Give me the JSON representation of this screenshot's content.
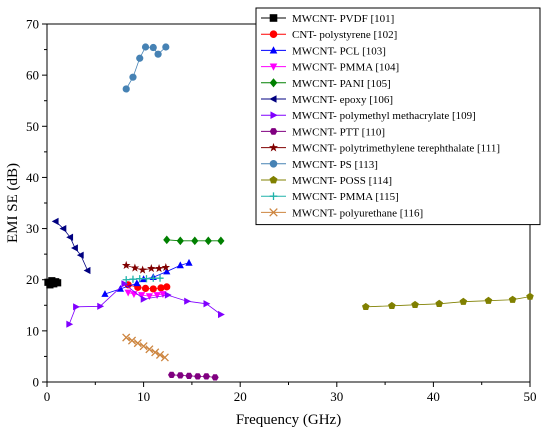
{
  "chart_data": {
    "type": "scatter",
    "xlabel": "Frequency (GHz)",
    "ylabel": "EMI SE (dB)",
    "xlim": [
      0,
      50
    ],
    "ylim": [
      0,
      70
    ],
    "xticks": [
      0,
      10,
      20,
      30,
      40,
      50
    ],
    "yticks": [
      0,
      10,
      20,
      30,
      40,
      50,
      60,
      70
    ],
    "grid": false,
    "legend_position": "top-right",
    "series": [
      {
        "name": "MWCNT- PVDF [101]",
        "color": "#000000",
        "marker": "square",
        "line": true,
        "points": [
          [
            0.1,
            19.5
          ],
          [
            0.3,
            19.0
          ],
          [
            0.5,
            19.8
          ],
          [
            0.7,
            19.2
          ],
          [
            0.9,
            19.6
          ],
          [
            1.1,
            19.4
          ]
        ]
      },
      {
        "name": "CNT- polystyrene [102]",
        "color": "#ff0000",
        "marker": "circle",
        "line": true,
        "points": [
          [
            8.4,
            19.0
          ],
          [
            9.4,
            18.5
          ],
          [
            10.2,
            18.3
          ],
          [
            11.0,
            18.2
          ],
          [
            11.8,
            18.4
          ],
          [
            12.4,
            18.6
          ]
        ]
      },
      {
        "name": "MWCNT- PCL [103]",
        "color": "#0000ff",
        "marker": "triangle-up",
        "line": true,
        "points": [
          [
            6.0,
            17.2
          ],
          [
            7.6,
            18.2
          ],
          [
            9.3,
            19.3
          ],
          [
            10.0,
            20.1
          ],
          [
            11.0,
            20.5
          ],
          [
            12.4,
            21.6
          ],
          [
            13.8,
            22.8
          ],
          [
            14.7,
            23.3
          ]
        ]
      },
      {
        "name": "MWCNT- PMMA [104]",
        "color": "#ff00ff",
        "marker": "triangle-down",
        "line": true,
        "points": [
          [
            8.4,
            17.5
          ],
          [
            9.0,
            17.2
          ],
          [
            9.8,
            17.0
          ],
          [
            10.6,
            16.8
          ],
          [
            11.4,
            17.0
          ],
          [
            12.0,
            17.2
          ]
        ]
      },
      {
        "name": "MWCNT- PANI [105]",
        "color": "#008000",
        "marker": "diamond",
        "line": true,
        "points": [
          [
            12.4,
            27.8
          ],
          [
            13.8,
            27.6
          ],
          [
            15.3,
            27.6
          ],
          [
            16.7,
            27.6
          ],
          [
            18.0,
            27.6
          ]
        ]
      },
      {
        "name": "MWCNT- epoxy [106]",
        "color": "#000080",
        "marker": "triangle-left",
        "line": true,
        "points": [
          [
            0.9,
            31.4
          ],
          [
            1.7,
            30.0
          ],
          [
            2.4,
            28.3
          ],
          [
            2.9,
            26.2
          ],
          [
            3.5,
            24.8
          ],
          [
            4.2,
            21.8
          ]
        ]
      },
      {
        "name": "MWCNT- polymethyl methacrylate [109]",
        "color": "#8000ff",
        "marker": "triangle-right",
        "line": true,
        "points": [
          [
            2.3,
            11.3
          ],
          [
            3.0,
            14.7
          ],
          [
            5.5,
            14.8
          ],
          [
            8.0,
            19.2
          ],
          [
            10.0,
            16.2
          ],
          [
            12.5,
            17.0
          ],
          [
            14.5,
            15.8
          ],
          [
            16.5,
            15.3
          ],
          [
            18.0,
            13.2
          ]
        ]
      },
      {
        "name": "MWCNT- PTT [110]",
        "color": "#800080",
        "marker": "hexagon",
        "line": true,
        "points": [
          [
            12.9,
            1.4
          ],
          [
            13.8,
            1.3
          ],
          [
            14.7,
            1.2
          ],
          [
            15.6,
            1.1
          ],
          [
            16.5,
            1.1
          ],
          [
            17.4,
            0.9
          ]
        ]
      },
      {
        "name": "MWCNT- polytrimethylene terephthalate [111]",
        "color": "#800000",
        "marker": "star",
        "line": true,
        "points": [
          [
            8.2,
            22.8
          ],
          [
            9.1,
            22.3
          ],
          [
            9.9,
            21.9
          ],
          [
            10.8,
            22.2
          ],
          [
            11.6,
            22.2
          ],
          [
            12.3,
            22.4
          ]
        ]
      },
      {
        "name": "MWCNT- PS [113]",
        "color": "#4682b4",
        "marker": "circle",
        "line": true,
        "points": [
          [
            8.2,
            57.3
          ],
          [
            8.9,
            59.6
          ],
          [
            9.6,
            63.3
          ],
          [
            10.2,
            65.5
          ],
          [
            11.0,
            65.4
          ],
          [
            11.5,
            64.1
          ],
          [
            12.3,
            65.5
          ]
        ]
      },
      {
        "name": "MWCNT- POSS [114]",
        "color": "#808000",
        "marker": "pentagon",
        "line": true,
        "points": [
          [
            33.0,
            14.7
          ],
          [
            35.7,
            14.9
          ],
          [
            38.1,
            15.1
          ],
          [
            40.6,
            15.3
          ],
          [
            43.1,
            15.7
          ],
          [
            45.7,
            15.9
          ],
          [
            48.2,
            16.1
          ],
          [
            50.0,
            16.7
          ]
        ]
      },
      {
        "name": "MWCNT- PMMA [115]",
        "color": "#20b2aa",
        "marker": "plus",
        "line": true,
        "points": [
          [
            8.2,
            20.0
          ],
          [
            8.9,
            20.1
          ],
          [
            9.6,
            20.2
          ],
          [
            10.3,
            20.2
          ],
          [
            11.0,
            20.3
          ],
          [
            11.7,
            20.3
          ]
        ]
      },
      {
        "name": "MWCNT- polyurethane [116]",
        "color": "#cd853f",
        "marker": "x",
        "line": true,
        "points": [
          [
            8.2,
            8.7
          ],
          [
            8.8,
            8.1
          ],
          [
            9.4,
            7.6
          ],
          [
            10.0,
            7.0
          ],
          [
            10.6,
            6.4
          ],
          [
            11.2,
            5.8
          ],
          [
            11.7,
            5.3
          ],
          [
            12.2,
            4.8
          ]
        ]
      }
    ]
  }
}
